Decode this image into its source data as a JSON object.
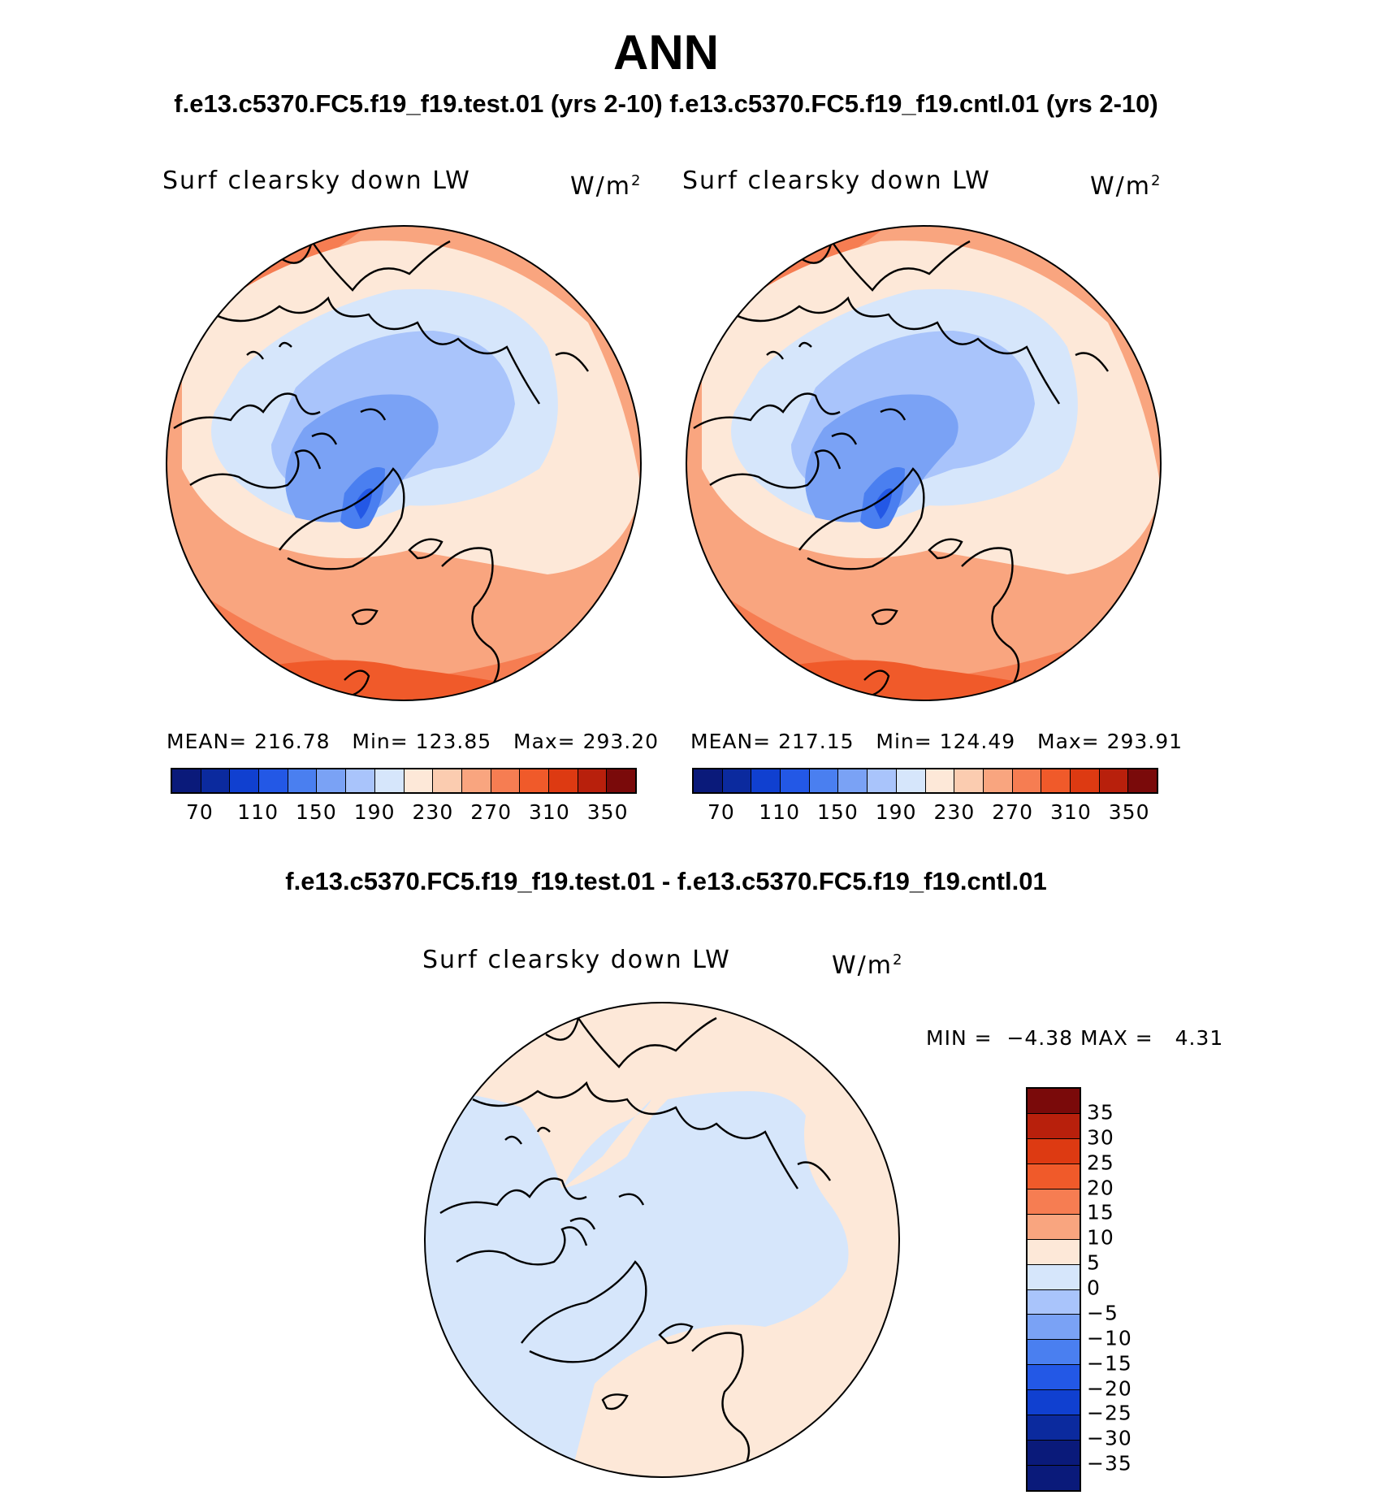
{
  "title": "ANN",
  "subtitle": "f.e13.c5370.FC5.f19_f19.test.01 (yrs 2-10) f.e13.c5370.FC5.f19_f19.cntl.01 (yrs 2-10)",
  "diff_title": "f.e13.c5370.FC5.f19_f19.test.01 - f.e13.c5370.FC5.f19_f19.cntl.01",
  "colors": {
    "abs_palette": [
      "#0a1a7a",
      "#0b2a9e",
      "#1040d0",
      "#2358e6",
      "#4a7ff0",
      "#7aa2f5",
      "#a9c4fb",
      "#d6e6fb",
      "#fde8d8",
      "#fbccb0",
      "#f9a57f",
      "#f67d52",
      "#f05a2a",
      "#dd3a12",
      "#b8200c",
      "#7a0a0a"
    ],
    "diff_palette": [
      "#7a0a0a",
      "#b8200c",
      "#dd3a12",
      "#f05a2a",
      "#f67d52",
      "#f9a57f",
      "#fde8d8",
      "#d6e6fb",
      "#a9c4fb",
      "#7aa2f5",
      "#4a7ff0",
      "#2358e6",
      "#1040d0",
      "#0b2a9e",
      "#0a1a7a",
      "#0a1a7a"
    ]
  },
  "panels": [
    {
      "label": "Surf clearsky down LW",
      "units": "W/m",
      "units_sup": "2",
      "mean_label": "MEAN=",
      "mean": "216.78",
      "min_label": "Min=",
      "min": "123.85",
      "max_label": "Max=",
      "max": "293.20",
      "ticks": [
        "70",
        "110",
        "150",
        "190",
        "230",
        "270",
        "310",
        "350"
      ]
    },
    {
      "label": "Surf clearsky down LW",
      "units": "W/m",
      "units_sup": "2",
      "mean_label": "MEAN=",
      "mean": "217.15",
      "min_label": "Min=",
      "min": "124.49",
      "max_label": "Max=",
      "max": "293.91",
      "ticks": [
        "70",
        "110",
        "150",
        "190",
        "230",
        "270",
        "310",
        "350"
      ]
    }
  ],
  "diff_panel": {
    "label": "Surf clearsky down LW",
    "units": "W/m",
    "units_sup": "2",
    "min_label": "MIN =",
    "min": "−4.38",
    "max_label": "MAX =",
    "max": "4.31",
    "ticks": [
      "35",
      "30",
      "25",
      "20",
      "15",
      "10",
      "5",
      "0",
      "−5",
      "−10",
      "−15",
      "−20",
      "−25",
      "−30",
      "−35"
    ]
  }
}
